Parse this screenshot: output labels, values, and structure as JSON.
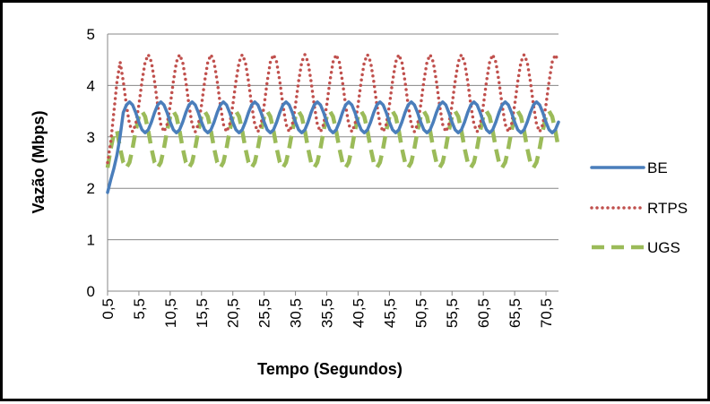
{
  "chart_data": {
    "type": "line",
    "title": "",
    "xlabel": "Tempo (Segundos)",
    "ylabel": "Vazão (Mbps)",
    "ylim": [
      0,
      5
    ],
    "yticks": [
      "0",
      "1",
      "2",
      "3",
      "4",
      "5"
    ],
    "xticks": [
      "0,5",
      "5,5",
      "10,5",
      "15,5",
      "20,5",
      "25,5",
      "30,5",
      "35,5",
      "40,5",
      "45,5",
      "50,5",
      "55,5",
      "60,5",
      "65,5",
      "70,5"
    ],
    "x_range": [
      0.5,
      72.5
    ],
    "x_step": 0.5,
    "grid": "horizontal",
    "legend_position": "right",
    "colors": {
      "BE": "#4a7ebb",
      "RTPS": "#c0504d",
      "UGS": "#9bbb59",
      "grid": "#878787",
      "axis": "#878787"
    },
    "series": [
      {
        "name": "BE",
        "style": "solid",
        "shape": {
          "start": 1.92,
          "mean": 3.38,
          "amp": 0.3,
          "period": 5,
          "peak_at": 3.5,
          "settle_seconds": 2.5
        }
      },
      {
        "name": "RTPS",
        "style": "dotted",
        "shape": {
          "start": 2.5,
          "mean": 3.85,
          "amp": 0.75,
          "period": 5,
          "peak_at": 1.5,
          "settle_seconds": 2.0
        }
      },
      {
        "name": "UGS",
        "style": "dashed",
        "shape": {
          "start": 2.4,
          "mean": 2.95,
          "amp": 0.55,
          "period": 5,
          "peak_at": 0.5,
          "settle_seconds": 1.5
        }
      }
    ]
  }
}
